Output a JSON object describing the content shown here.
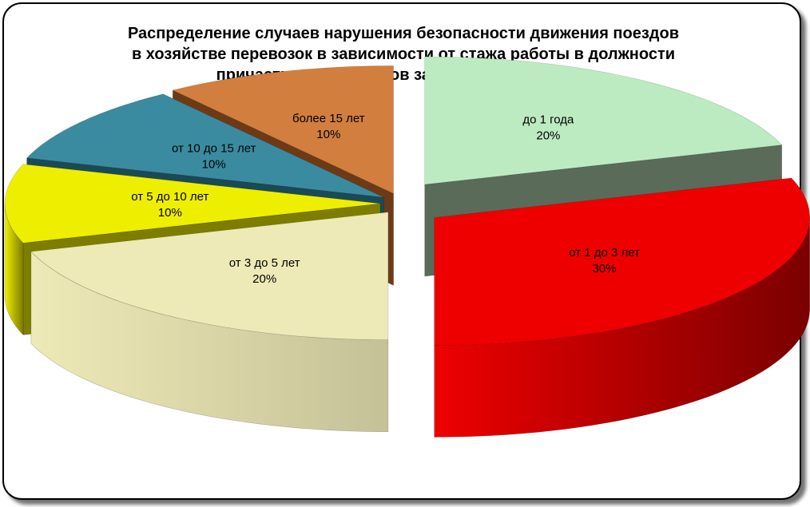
{
  "chart_data": {
    "type": "pie",
    "variant": "3d-exploded",
    "title_lines": [
      "Распределение случаев нарушения безопасности движения поездов",
      "в хозяйстве перевозок в зависимости от стажа работы в должности",
      "причастных работников за 1 квартал 2014 года"
    ],
    "unit": "%",
    "legend": "none",
    "slices": [
      {
        "label": "до 1 года",
        "value": 20,
        "color": "#BDEBC1",
        "side_color": "#5A6B5A"
      },
      {
        "label": "от 1 до 3 лет",
        "value": 30,
        "color": "#EE0000",
        "side_color": "#7A0000"
      },
      {
        "label": "от 3 до 5 лет",
        "value": 20,
        "color": "#EEEAB7",
        "side_color": "#C5C197"
      },
      {
        "label": "от 5 до 10 лет",
        "value": 10,
        "color": "#EEEE00",
        "side_color": "#7D7D00"
      },
      {
        "label": "от 10 до 15 лет",
        "value": 10,
        "color": "#3A8BA0",
        "side_color": "#1A4A57"
      },
      {
        "label": "более 15 лет",
        "value": 10,
        "color": "#D27E3E",
        "side_color": "#6E3A16"
      }
    ]
  }
}
